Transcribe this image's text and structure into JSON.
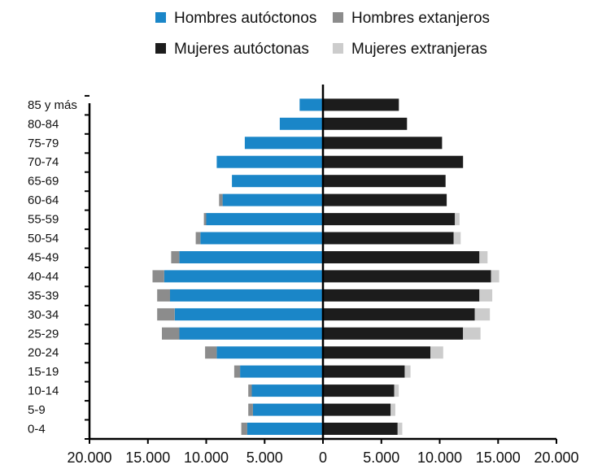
{
  "chart_data": {
    "type": "bar",
    "orientation": "horizontal",
    "layout": "population-pyramid",
    "categories": [
      "0-4",
      "5-9",
      "10-14",
      "15-19",
      "20-24",
      "25-29",
      "30-34",
      "35-39",
      "40-44",
      "45-49",
      "50-54",
      "55-59",
      "60-64",
      "65-69",
      "70-74",
      "75-79",
      "80-84",
      "85 y más"
    ],
    "series": [
      {
        "name": "Hombres autóctonos",
        "side": "left",
        "color": "#1a86c8",
        "values": [
          6500,
          6000,
          6100,
          7100,
          9100,
          12300,
          12700,
          13100,
          13600,
          12300,
          10500,
          10000,
          8600,
          7800,
          9100,
          6700,
          3700,
          2000
        ]
      },
      {
        "name": "Hombres extanjeros",
        "side": "left",
        "color": "#8c8c8c",
        "values": [
          500,
          400,
          300,
          500,
          1000,
          1500,
          1500,
          1100,
          1000,
          700,
          400,
          200,
          300,
          0,
          0,
          0,
          0,
          0
        ]
      },
      {
        "name": "Mujeres autóctonas",
        "side": "right",
        "color": "#1c1c1c",
        "values": [
          6400,
          5800,
          6100,
          7000,
          9200,
          12000,
          13000,
          13400,
          14400,
          13400,
          11200,
          11300,
          10600,
          10500,
          12000,
          10200,
          7200,
          6500
        ]
      },
      {
        "name": "Mujeres extranjeras",
        "side": "right",
        "color": "#cccccc",
        "values": [
          400,
          400,
          400,
          500,
          1100,
          1500,
          1300,
          1100,
          700,
          700,
          600,
          400,
          0,
          0,
          0,
          0,
          0,
          0
        ]
      }
    ],
    "xlim": [
      -20000,
      20000
    ],
    "xticks": [
      "20.000",
      "15.000",
      "10.000",
      "5.000",
      "0",
      "5.000",
      "10.000",
      "15.000",
      "20.000"
    ],
    "legend_position": "top"
  }
}
